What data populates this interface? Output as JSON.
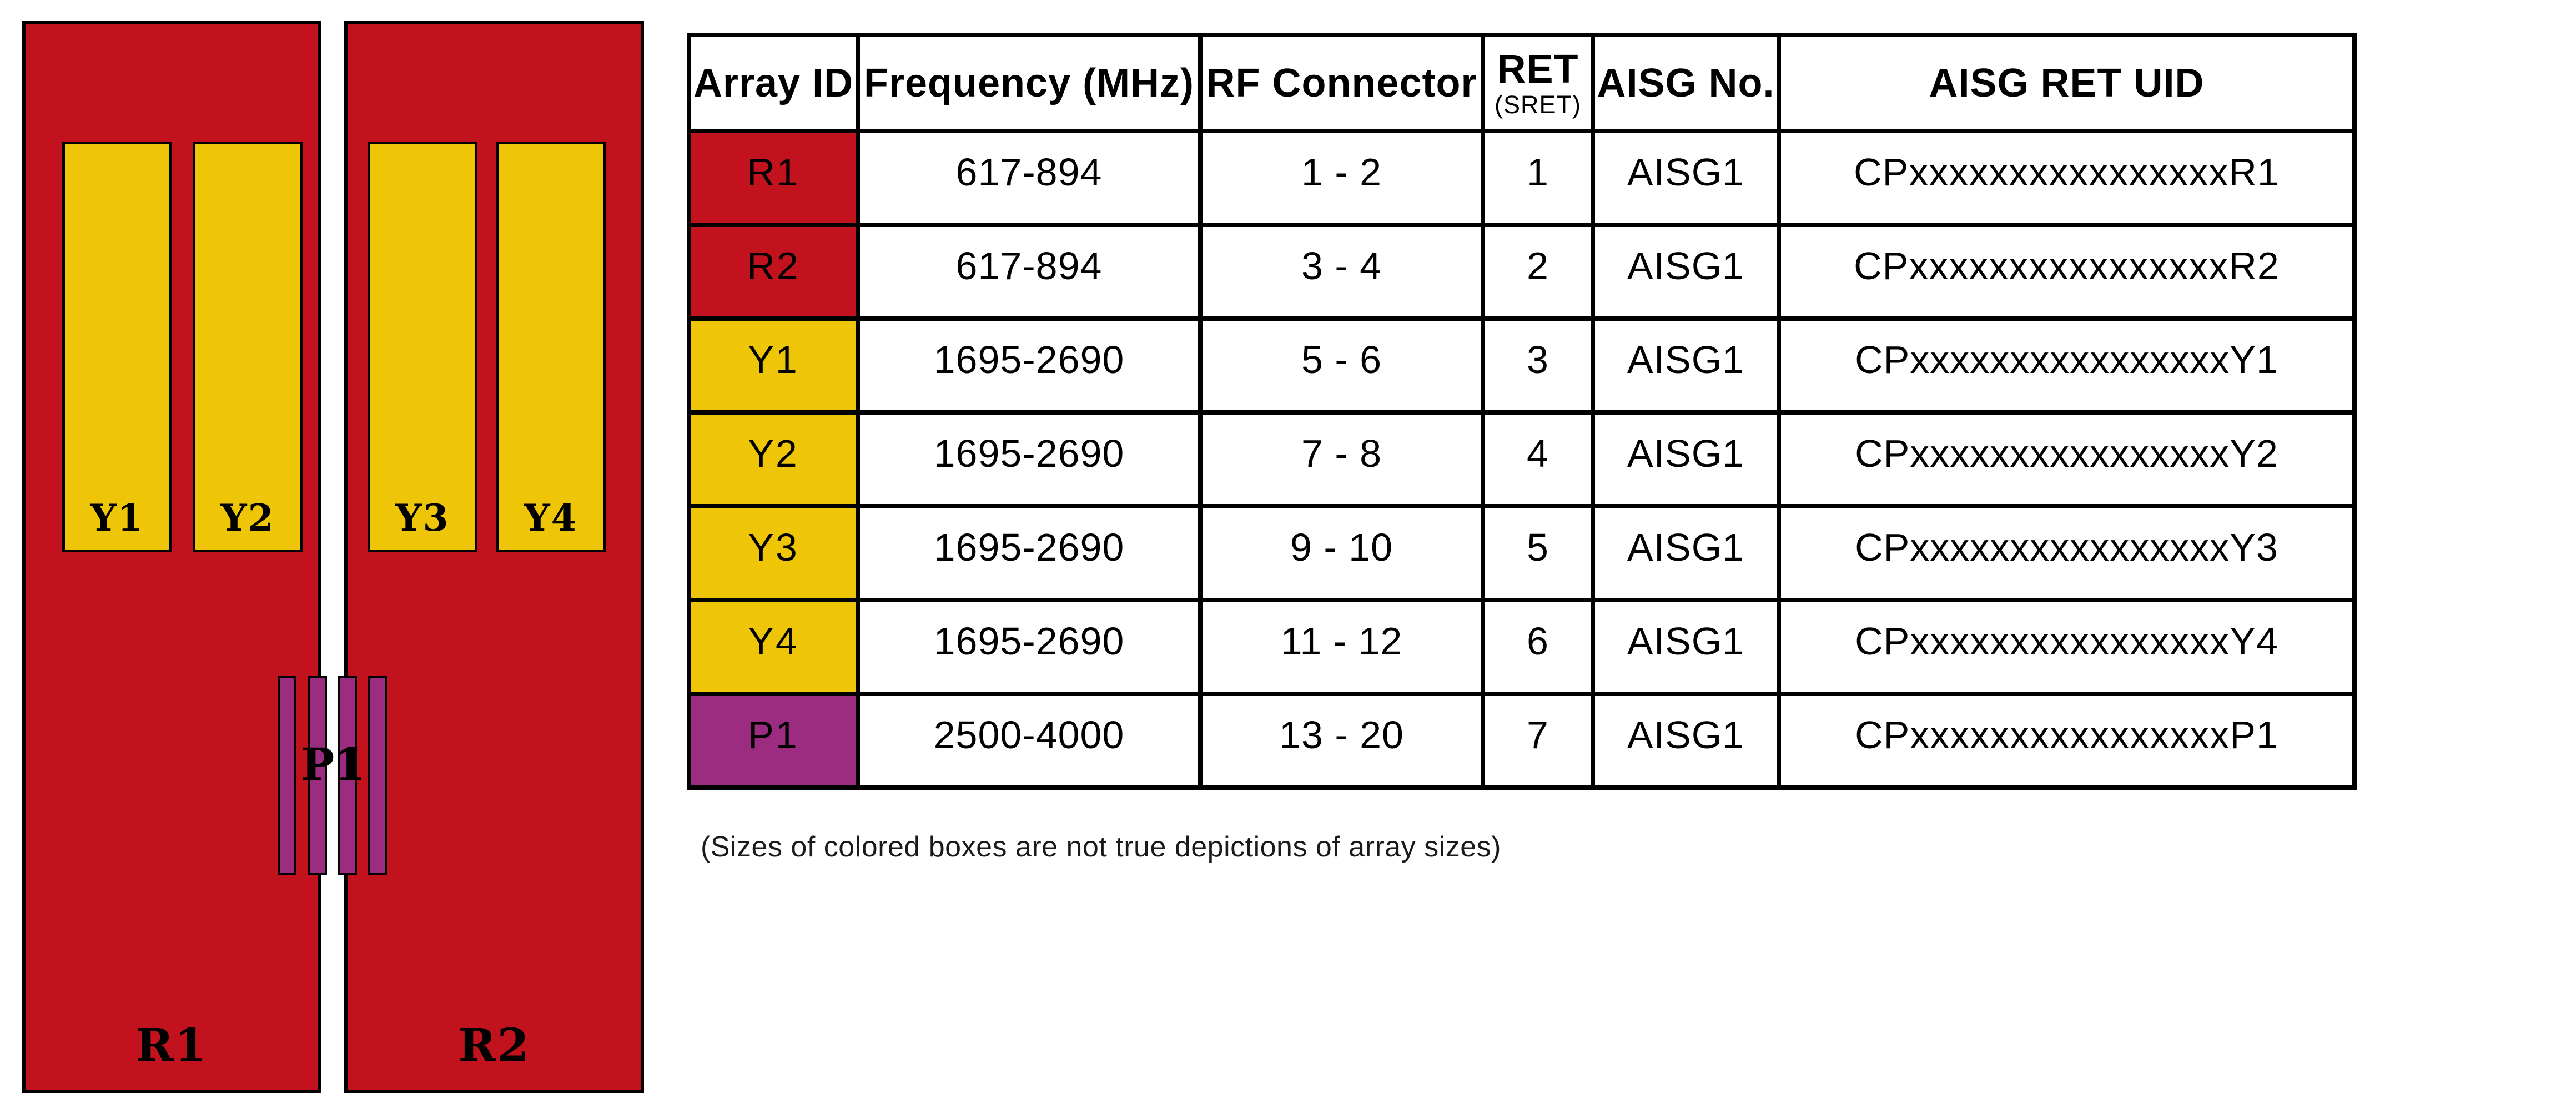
{
  "colors": {
    "red": "#C2121E",
    "yellow": "#EEC607",
    "purple": "#9B2C80",
    "line": "#000000"
  },
  "diagram": {
    "panels": [
      {
        "label": "R1"
      },
      {
        "label": "R2"
      }
    ],
    "arrays": [
      {
        "label": "Y1"
      },
      {
        "label": "Y2"
      },
      {
        "label": "Y3"
      },
      {
        "label": "Y4"
      }
    ],
    "p1_label": "P1"
  },
  "table": {
    "headers": {
      "array_id": "Array ID",
      "frequency": "Frequency (MHz)",
      "rf_connector": "RF Connector",
      "ret": "RET",
      "ret_sub": "(SRET)",
      "aisg_no": "AISG No.",
      "aisg_ret_uid": "AISG RET UID"
    },
    "rows": [
      {
        "array_id": "R1",
        "color": "red",
        "frequency": "617-894",
        "rf_connector": "1 - 2",
        "ret": "1",
        "aisg_no": "AISG1",
        "aisg_ret_uid": "CPxxxxxxxxxxxxxxxxR1"
      },
      {
        "array_id": "R2",
        "color": "red",
        "frequency": "617-894",
        "rf_connector": "3 - 4",
        "ret": "2",
        "aisg_no": "AISG1",
        "aisg_ret_uid": "CPxxxxxxxxxxxxxxxxR2"
      },
      {
        "array_id": "Y1",
        "color": "yellow",
        "frequency": "1695-2690",
        "rf_connector": "5 - 6",
        "ret": "3",
        "aisg_no": "AISG1",
        "aisg_ret_uid": "CPxxxxxxxxxxxxxxxxY1"
      },
      {
        "array_id": "Y2",
        "color": "yellow",
        "frequency": "1695-2690",
        "rf_connector": "7 - 8",
        "ret": "4",
        "aisg_no": "AISG1",
        "aisg_ret_uid": "CPxxxxxxxxxxxxxxxxY2"
      },
      {
        "array_id": "Y3",
        "color": "yellow",
        "frequency": "1695-2690",
        "rf_connector": "9 - 10",
        "ret": "5",
        "aisg_no": "AISG1",
        "aisg_ret_uid": "CPxxxxxxxxxxxxxxxxY3"
      },
      {
        "array_id": "Y4",
        "color": "yellow",
        "frequency": "1695-2690",
        "rf_connector": "11 - 12",
        "ret": "6",
        "aisg_no": "AISG1",
        "aisg_ret_uid": "CPxxxxxxxxxxxxxxxxY4"
      },
      {
        "array_id": "P1",
        "color": "purple",
        "frequency": "2500-4000",
        "rf_connector": "13 - 20",
        "ret": "7",
        "aisg_no": "AISG1",
        "aisg_ret_uid": "CPxxxxxxxxxxxxxxxxP1"
      }
    ]
  },
  "footnote": "(Sizes of colored boxes are not true depictions of array sizes)"
}
